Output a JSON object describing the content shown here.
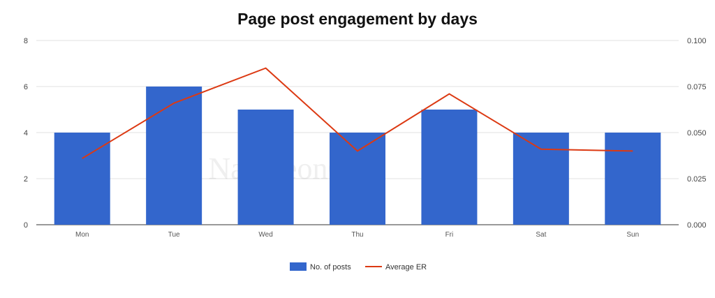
{
  "chart_data": {
    "type": "bar",
    "title": "Page post engagement by days",
    "categories": [
      "Mon",
      "Tue",
      "Wed",
      "Thu",
      "Fri",
      "Sat",
      "Sun"
    ],
    "series": [
      {
        "name": "No. of posts",
        "type": "bar",
        "axis": "left",
        "color": "#3366cc",
        "values": [
          4,
          6,
          5,
          4,
          5,
          4,
          4
        ]
      },
      {
        "name": "Average ER",
        "type": "line",
        "axis": "right",
        "color": "#dc3912",
        "values": [
          0.036,
          0.066,
          0.085,
          0.04,
          0.071,
          0.041,
          0.04
        ]
      }
    ],
    "y_left": {
      "min": 0,
      "max": 8,
      "ticks": [
        "0",
        "2",
        "4",
        "6",
        "8"
      ]
    },
    "y_right": {
      "min": 0,
      "max": 0.1,
      "ticks": [
        "0.000",
        "0.025",
        "0.050",
        "0.075",
        "0.100"
      ]
    },
    "grid": true,
    "legend": "bottom",
    "watermark": "NapoleonCat."
  }
}
